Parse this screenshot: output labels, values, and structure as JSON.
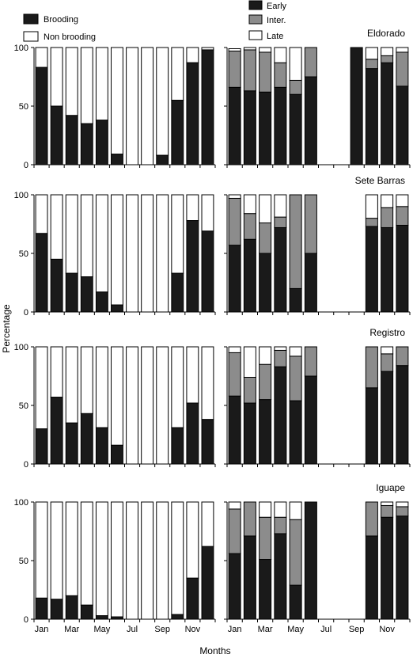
{
  "chart_data": {
    "type": "bar",
    "stacked": true,
    "xlabel": "Months",
    "ylabel": "Percentage",
    "ylim": [
      0,
      100
    ],
    "yticks": [
      "0",
      "50",
      "100"
    ],
    "xtick_labels": [
      "Jan",
      "Mar",
      "May",
      "Jul",
      "Sep",
      "Nov"
    ],
    "months": [
      "Jan",
      "Feb",
      "Mar",
      "Apr",
      "May",
      "Jun",
      "Jul",
      "Aug",
      "Sep",
      "Oct",
      "Nov",
      "Dec"
    ],
    "legend_left": [
      {
        "name": "Brooding",
        "color": "#1a1a1a"
      },
      {
        "name": "Non brooding",
        "color": "#ffffff"
      }
    ],
    "legend_right": [
      {
        "name": "Early",
        "color": "#1a1a1a"
      },
      {
        "name": "Inter.",
        "color": "#8c8c8c"
      },
      {
        "name": "Late",
        "color": "#ffffff"
      }
    ],
    "sites": [
      {
        "name": "Eldorado",
        "brooding": [
          83,
          50,
          42,
          35,
          38,
          9,
          0,
          0,
          8,
          55,
          87,
          98
        ],
        "stages": [
          [
            66,
            31,
            2
          ],
          [
            63,
            35,
            2
          ],
          [
            62,
            34,
            4
          ],
          [
            66,
            21,
            13
          ],
          [
            60,
            12,
            28
          ],
          [
            75,
            25,
            0
          ],
          null,
          null,
          [
            100,
            0,
            0
          ],
          [
            82,
            8,
            10
          ],
          [
            87,
            6,
            7
          ],
          [
            67,
            29,
            4
          ]
        ]
      },
      {
        "name": "Sete Barras",
        "brooding": [
          67,
          45,
          33,
          30,
          17,
          6,
          0,
          0,
          0,
          33,
          78,
          69
        ],
        "stages": [
          [
            57,
            40,
            3
          ],
          [
            62,
            22,
            16
          ],
          [
            50,
            26,
            24
          ],
          [
            72,
            9,
            19
          ],
          [
            20,
            80,
            0
          ],
          [
            50,
            50,
            0
          ],
          null,
          null,
          null,
          [
            73,
            7,
            20
          ],
          [
            72,
            17,
            11
          ],
          [
            74,
            16,
            10
          ]
        ]
      },
      {
        "name": "Registro",
        "brooding": [
          30,
          57,
          35,
          43,
          31,
          16,
          0,
          0,
          0,
          31,
          52,
          38
        ],
        "stages": [
          [
            58,
            37,
            5
          ],
          [
            52,
            22,
            26
          ],
          [
            55,
            30,
            15
          ],
          [
            83,
            14,
            3
          ],
          [
            54,
            38,
            8
          ],
          [
            75,
            25,
            0
          ],
          null,
          null,
          null,
          [
            65,
            35,
            0
          ],
          [
            79,
            15,
            6
          ],
          [
            84,
            16,
            0
          ]
        ]
      },
      {
        "name": "Iguape",
        "brooding": [
          18,
          17,
          20,
          12,
          3,
          2,
          0,
          0,
          0,
          4,
          35,
          62
        ],
        "stages": [
          [
            56,
            38,
            6
          ],
          [
            71,
            29,
            0
          ],
          [
            51,
            36,
            13
          ],
          [
            73,
            14,
            13
          ],
          [
            29,
            56,
            15
          ],
          [
            100,
            0,
            0
          ],
          null,
          null,
          null,
          [
            71,
            29,
            0
          ],
          [
            87,
            10,
            3
          ],
          [
            88,
            8,
            4
          ]
        ]
      }
    ]
  }
}
